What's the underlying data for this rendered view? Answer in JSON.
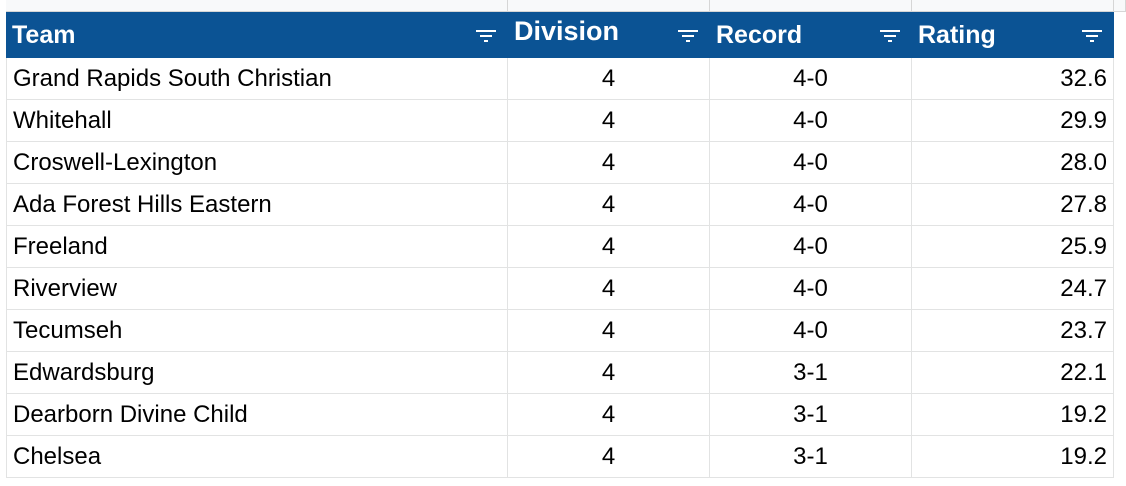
{
  "table": {
    "header": [
      "Team",
      "Division",
      "Record",
      "Rating"
    ],
    "rows": [
      [
        "Grand Rapids South Christian",
        "4",
        "4-0",
        "32.6"
      ],
      [
        "Whitehall",
        "4",
        "4-0",
        "29.9"
      ],
      [
        "Croswell-Lexington",
        "4",
        "4-0",
        "28.0"
      ],
      [
        "Ada Forest Hills Eastern",
        "4",
        "4-0",
        "27.8"
      ],
      [
        "Freeland",
        "4",
        "4-0",
        "25.9"
      ],
      [
        "Riverview",
        "4",
        "4-0",
        "24.7"
      ],
      [
        "Tecumseh",
        "4",
        "4-0",
        "23.7"
      ],
      [
        "Edwardsburg",
        "4",
        "3-1",
        "22.1"
      ],
      [
        "Dearborn Divine Child",
        "4",
        "3-1",
        "19.2"
      ],
      [
        "Chelsea",
        "4",
        "3-1",
        "19.2"
      ]
    ]
  }
}
